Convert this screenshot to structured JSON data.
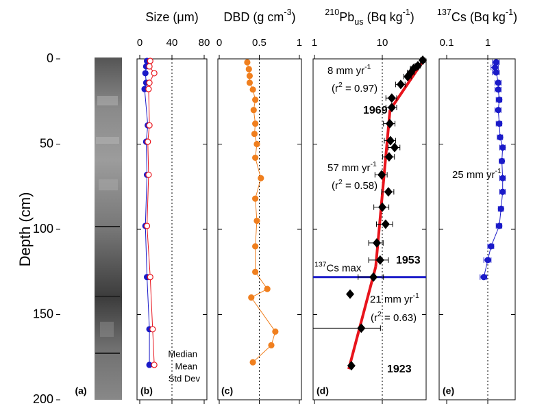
{
  "core_panel": {
    "label": "(a)"
  },
  "chart_data": [
    {
      "type": "line",
      "panel_label": "(b)",
      "title": [
        {
          "text": "Size (μm)"
        }
      ],
      "ylabel": "Depth (cm)",
      "xlim": [
        -3.4,
        83.4
      ],
      "xticks": [
        0,
        40,
        80
      ],
      "xref": 40,
      "ylim": [
        0,
        200
      ],
      "yticks": [
        0,
        50,
        100,
        150,
        200
      ],
      "depth": [
        1.2,
        4.4,
        8.4,
        14,
        17.7,
        39,
        48.6,
        68,
        98,
        128,
        158.6,
        179.5
      ],
      "series": [
        {
          "name": "Median",
          "color": "#1a1ac8",
          "marker": "circle-filled",
          "values": [
            9,
            8,
            7,
            8,
            6,
            10,
            8,
            9,
            7,
            9,
            12,
            12
          ]
        },
        {
          "name": "Mean",
          "color": "#e8141c",
          "marker": "circle-open",
          "values": [
            13,
            12,
            18,
            12,
            11,
            12,
            10,
            11,
            9,
            13,
            16,
            18
          ]
        }
      ],
      "legend_note": "Std Dev",
      "legend": "bottom-right"
    },
    {
      "type": "line",
      "panel_label": "(c)",
      "title": [
        {
          "text": "DBD (g cm"
        },
        {
          "sup": "-3"
        },
        {
          "text": ")"
        }
      ],
      "xlim": [
        -0.017,
        1.026
      ],
      "xticks": [
        0,
        0.5,
        1
      ],
      "xref": 0.5,
      "ylim": [
        0,
        200
      ],
      "yticks": [
        0,
        50,
        100,
        150,
        200
      ],
      "depth": [
        2,
        6,
        10,
        14,
        18,
        24,
        30,
        38,
        44,
        50,
        58,
        70,
        82,
        95,
        110,
        125,
        135,
        140,
        160,
        168,
        178
      ],
      "series": [
        {
          "color": "#f07f1e",
          "marker": "circle-filled",
          "values": [
            0.35,
            0.37,
            0.38,
            0.38,
            0.42,
            0.45,
            0.43,
            0.45,
            0.44,
            0.47,
            0.45,
            0.52,
            0.45,
            0.47,
            0.45,
            0.45,
            0.6,
            0.4,
            0.7,
            0.65,
            0.42
          ]
        }
      ]
    },
    {
      "type": "scatter",
      "panel_label": "(d)",
      "title": [
        {
          "sup": "210"
        },
        {
          "text": "Pb"
        },
        {
          "sub": "us"
        },
        {
          "text": " (Bq kg"
        },
        {
          "sup": "-1"
        },
        {
          "text": ")"
        }
      ],
      "xscale": "log",
      "xlim": [
        0.954,
        44.3
      ],
      "xticks": [
        1,
        10
      ],
      "xref": 10,
      "ylim": [
        0,
        200
      ],
      "yticks": [
        0,
        50,
        100,
        150,
        200
      ],
      "depth": [
        0.8,
        4,
        5.6,
        8,
        10.4,
        15,
        23,
        28.5,
        38,
        48,
        52,
        57.5,
        68,
        78,
        87,
        97,
        108,
        118,
        128,
        138,
        158,
        180
      ],
      "series": [
        {
          "color": "#000000",
          "marker": "diamond",
          "values": [
            39.5,
            33.5,
            29,
            26.5,
            23.7,
            18.7,
            13.8,
            13.8,
            12.9,
            13.2,
            15.2,
            12.6,
            9.8,
            12.3,
            10,
            11.2,
            8.3,
            9.3,
            7.4,
            3.35,
            4.9,
            3.5
          ],
          "xerr": [
            3,
            3,
            3,
            3,
            3,
            3,
            2.5,
            2.5,
            2.5,
            2.5,
            3,
            2.5,
            2,
            2.5,
            2.5,
            3,
            2,
            3,
            3,
            7,
            4.5,
            4.5
          ]
        }
      ],
      "fits": [
        {
          "color": "#e8141c",
          "x": [
            42,
            13
          ],
          "y": [
            0,
            30
          ]
        },
        {
          "color": "#e8141c",
          "x": [
            13,
            8
          ],
          "y": [
            30,
            122
          ]
        },
        {
          "color": "#e8141c",
          "x": [
            8,
            3.2
          ],
          "y": [
            122,
            182
          ]
        }
      ],
      "cs_max": {
        "depth": 128,
        "color": "#1a1ac8",
        "label": [
          {
            "sup": "137"
          },
          {
            "text": "Cs max"
          }
        ]
      },
      "annotations": [
        {
          "color": "#e8141c",
          "parts": [
            {
              "text": "8 mm yr"
            },
            {
              "sup": "-1"
            }
          ]
        },
        {
          "color": "#e8141c",
          "parts": [
            {
              "text": "(r"
            },
            {
              "sup": "2"
            },
            {
              "text": " = 0.97)"
            }
          ]
        },
        {
          "color": "#000000",
          "bold": true,
          "parts": [
            {
              "text": "1969"
            }
          ]
        },
        {
          "color": "#e8141c",
          "parts": [
            {
              "text": "57 mm yr"
            },
            {
              "sup": "-1"
            }
          ]
        },
        {
          "color": "#e8141c",
          "parts": [
            {
              "text": "(r"
            },
            {
              "sup": "2"
            },
            {
              "text": " = 0.58)"
            }
          ]
        },
        {
          "color": "#000000",
          "bold": true,
          "parts": [
            {
              "text": "1953"
            }
          ]
        },
        {
          "color": "#e8141c",
          "parts": [
            {
              "text": "21 mm yr"
            },
            {
              "sup": "-1"
            }
          ]
        },
        {
          "color": "#e8141c",
          "parts": [
            {
              "text": "(r"
            },
            {
              "sup": "2"
            },
            {
              "text": " = 0.63)"
            }
          ]
        },
        {
          "color": "#000000",
          "bold": true,
          "parts": [
            {
              "text": "1923"
            }
          ]
        }
      ]
    },
    {
      "type": "line",
      "panel_label": "(e)",
      "title": [
        {
          "sup": "137"
        },
        {
          "text": "Cs (Bq kg"
        },
        {
          "sup": "-1"
        },
        {
          "text": ")"
        }
      ],
      "xscale": "log",
      "xlim": [
        0.0655,
        4.64
      ],
      "xticks": [
        0.1,
        1
      ],
      "xref": 1,
      "ylim": [
        0,
        200
      ],
      "yticks": [
        0,
        50,
        100,
        150,
        200
      ],
      "depth": [
        2,
        5,
        8,
        14,
        18,
        24,
        30,
        38,
        46,
        52,
        60,
        70,
        78,
        88,
        98,
        110,
        118,
        128
      ],
      "series": [
        {
          "color": "#1a1ac8",
          "marker": "circle-filled",
          "values": [
            1.6,
            1.5,
            1.6,
            1.8,
            1.8,
            1.9,
            1.8,
            1.9,
            2.0,
            2.3,
            2.2,
            2.3,
            2.3,
            2.1,
            1.9,
            1.2,
            1.0,
            0.8
          ],
          "xerr": [
            0.3,
            0.3,
            0.3,
            0.3,
            0.3,
            0.3,
            0.3,
            0.3,
            0.3,
            0.35,
            0.3,
            0.35,
            0.35,
            0.3,
            0.3,
            0.2,
            0.2,
            0.15
          ]
        }
      ],
      "annotations": [
        {
          "color": "#1a1ac8",
          "parts": [
            {
              "text": "25 mm yr"
            },
            {
              "sup": "-1"
            }
          ]
        }
      ]
    }
  ]
}
